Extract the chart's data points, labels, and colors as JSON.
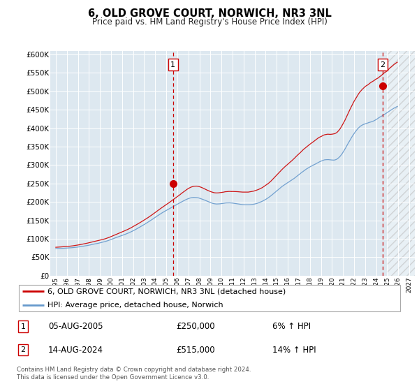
{
  "title": "6, OLD GROVE COURT, NORWICH, NR3 3NL",
  "subtitle": "Price paid vs. HM Land Registry's House Price Index (HPI)",
  "ylabel_ticks": [
    0,
    50000,
    100000,
    150000,
    200000,
    250000,
    300000,
    350000,
    400000,
    450000,
    500000,
    550000,
    600000
  ],
  "ylim": [
    0,
    610000
  ],
  "xlim_start": 1995.0,
  "xlim_end": 2027.5,
  "future_start": 2025.0,
  "sale1_date": 2005.6,
  "sale1_price": 250000,
  "sale2_date": 2024.6,
  "sale2_price": 515000,
  "legend_entry1": "6, OLD GROVE COURT, NORWICH, NR3 3NL (detached house)",
  "legend_entry2": "HPI: Average price, detached house, Norwich",
  "table_row1_num": "1",
  "table_row1_date": "05-AUG-2005",
  "table_row1_price": "£250,000",
  "table_row1_hpi": "6% ↑ HPI",
  "table_row2_num": "2",
  "table_row2_date": "14-AUG-2024",
  "table_row2_price": "£515,000",
  "table_row2_hpi": "14% ↑ HPI",
  "footer": "Contains HM Land Registry data © Crown copyright and database right 2024.\nThis data is licensed under the Open Government Licence v3.0.",
  "line_color_property": "#cc0000",
  "line_color_hpi": "#6699cc",
  "marker_color": "#cc0000",
  "bg_color": "#dde8f0",
  "grid_color": "#ffffff",
  "future_hatch_color": "#bbbbbb"
}
